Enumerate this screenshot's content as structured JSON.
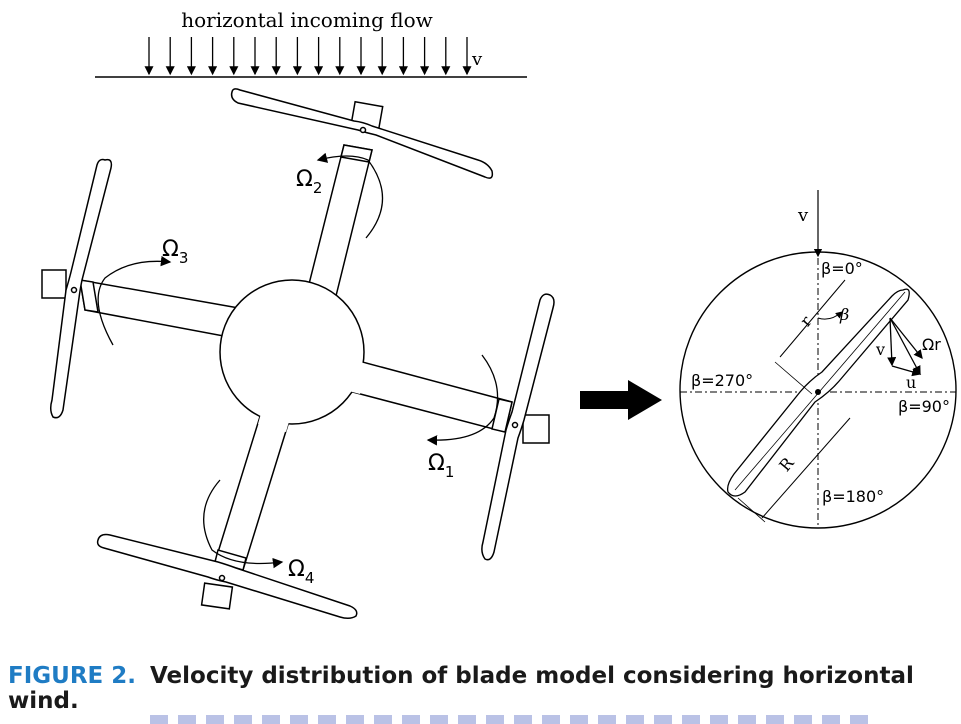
{
  "figure": {
    "flow_label": "horizontal incoming flow",
    "v_label": "v",
    "omega_symbol": "Ω",
    "omega_subs": [
      "1",
      "2",
      "3",
      "4"
    ],
    "detail": {
      "v_label": "v",
      "beta0": "β=0°",
      "beta90": "β=90°",
      "beta180": "β=180°",
      "beta270": "β=270°",
      "beta": "β",
      "r": "r",
      "R": "R",
      "vel_v": "v",
      "vel_omega_r": "Ωr",
      "vel_u": "u"
    }
  },
  "caption": {
    "label": "FIGURE 2.",
    "text": "Velocity distribution of blade model considering horizontal wind."
  }
}
